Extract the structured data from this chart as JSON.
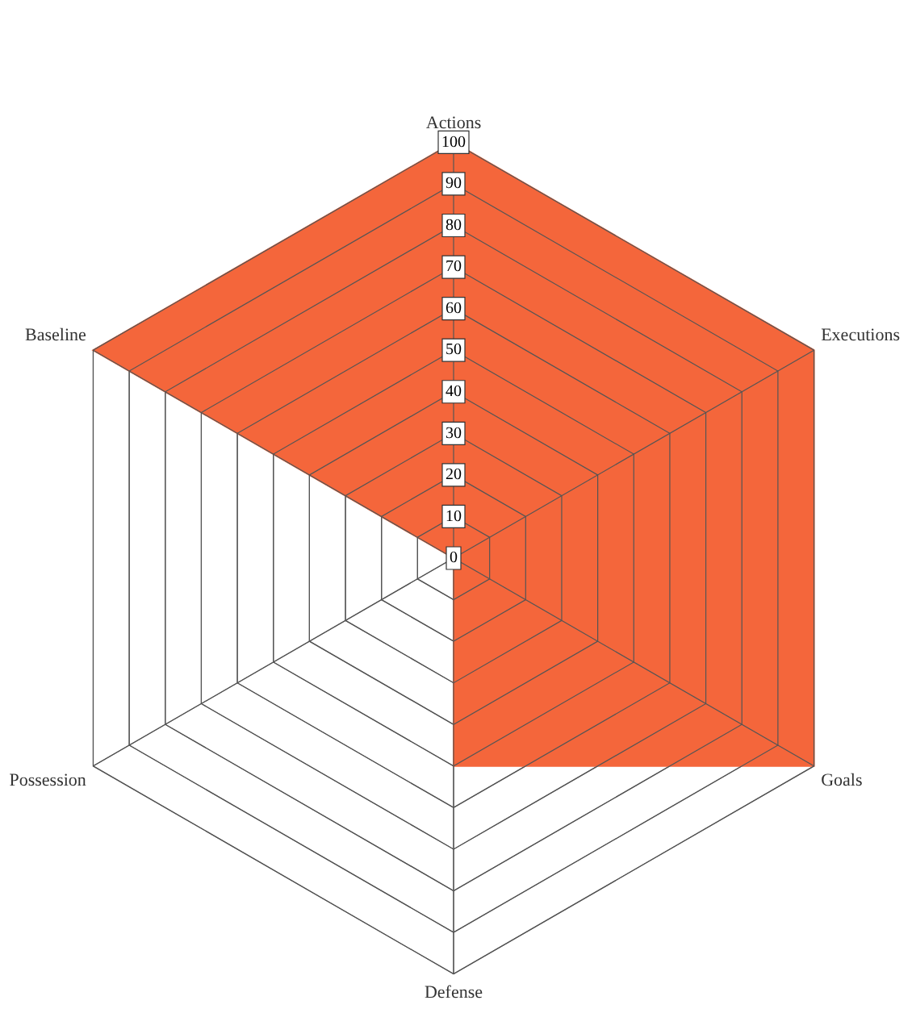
{
  "chart_data": {
    "type": "radar",
    "categories": [
      "Actions",
      "Executions",
      "Goals",
      "Defense",
      "Possession",
      "Baseline"
    ],
    "series": [
      {
        "color": "#f4663b",
        "values": [
          100,
          100,
          100,
          50,
          0,
          100
        ]
      }
    ],
    "ylim": [
      0,
      100
    ],
    "yticks": [
      0,
      10,
      20,
      30,
      40,
      50,
      60,
      70,
      80,
      90,
      100
    ],
    "grid": true,
    "legend": false,
    "marker": "none"
  }
}
